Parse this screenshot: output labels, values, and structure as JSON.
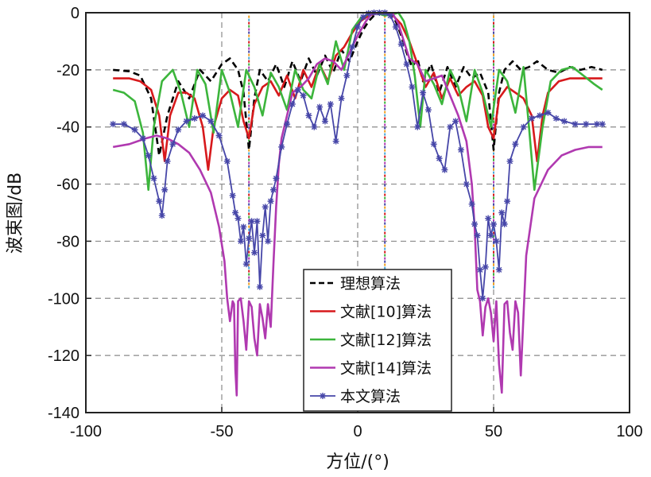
{
  "chart_data": {
    "type": "line",
    "xlabel": "方位/(°)",
    "ylabel": "波束图/dB",
    "xlim": [
      -100,
      100
    ],
    "ylim": [
      -140,
      0
    ],
    "xticks": [
      -100,
      -50,
      0,
      50,
      100
    ],
    "yticks": [
      0,
      -20,
      -40,
      -60,
      -80,
      -100,
      -120,
      -140
    ],
    "xtick_labels": [
      "-100",
      "-50",
      "0",
      "50",
      "100"
    ],
    "ytick_labels": [
      "0",
      "-20",
      "-40",
      "-60",
      "-80",
      "-100",
      "-120",
      "-140"
    ],
    "grid": true,
    "legend_position": "bottom-center",
    "main_beam_direction": 10,
    "interference_directions": [
      -40,
      50
    ],
    "series": [
      {
        "name": "理想算法",
        "color": "#000000",
        "style": "dashed",
        "x": [
          -90,
          -84,
          -80,
          -76,
          -73,
          -70,
          -66,
          -62,
          -58,
          -54,
          -50,
          -47,
          -44,
          -42,
          -40,
          -38,
          -36,
          -33,
          -30,
          -27,
          -24,
          -21,
          -18,
          -15,
          -12,
          -9,
          -6,
          -3,
          0,
          2,
          4,
          6,
          8,
          10,
          12,
          14,
          16,
          18,
          20,
          22,
          24,
          27,
          30,
          33,
          36,
          39,
          42,
          45,
          48,
          50,
          52,
          54,
          57,
          60,
          63,
          66,
          70,
          74,
          78,
          82,
          86,
          90
        ],
        "values": [
          -20,
          -20.5,
          -22,
          -30,
          -50,
          -36,
          -24,
          -30,
          -20,
          -24,
          -18,
          -16,
          -20,
          -28,
          -48,
          -30,
          -20,
          -24,
          -18,
          -26,
          -17,
          -24,
          -16,
          -22,
          -15,
          -21,
          -13,
          -17,
          -10,
          -6,
          -3,
          -1,
          -0.3,
          0,
          -0.5,
          -3,
          -8,
          -14,
          -19,
          -16,
          -24,
          -18,
          -28,
          -19,
          -26,
          -19,
          -23,
          -21,
          -28,
          -48,
          -28,
          -20,
          -17,
          -20,
          -19,
          -17,
          -20,
          -21,
          -19,
          -20,
          -19,
          -20
        ]
      },
      {
        "name": "文献[10]算法",
        "color": "#d7191c",
        "style": "solid",
        "x": [
          -90,
          -84,
          -80,
          -76,
          -73,
          -71,
          -69,
          -66,
          -63,
          -60,
          -57,
          -55,
          -53,
          -50,
          -47,
          -44,
          -42,
          -40,
          -38,
          -35,
          -32,
          -29,
          -26,
          -23,
          -20,
          -17,
          -14,
          -11,
          -8,
          -5,
          -2,
          1,
          4,
          7,
          10,
          13,
          16,
          19,
          22,
          25,
          28,
          31,
          34,
          37,
          40,
          43,
          46,
          48,
          50,
          52,
          55,
          58,
          61,
          64,
          66,
          68,
          70,
          74,
          78,
          82,
          86,
          90
        ],
        "values": [
          -23,
          -23,
          -24,
          -27,
          -36,
          -52,
          -36,
          -28,
          -28,
          -30,
          -40,
          -55,
          -40,
          -30,
          -27,
          -29,
          -38,
          -44,
          -32,
          -26,
          -24,
          -29,
          -22,
          -30,
          -20,
          -26,
          -18,
          -24,
          -15,
          -12,
          -7,
          -3,
          -1,
          -0.2,
          0,
          -1,
          -4,
          -10,
          -18,
          -26,
          -21,
          -30,
          -23,
          -29,
          -26,
          -24,
          -29,
          -40,
          -44,
          -30,
          -26,
          -28,
          -30,
          -36,
          -52,
          -36,
          -28,
          -24,
          -23,
          -23,
          -23,
          -23
        ]
      },
      {
        "name": "文献[12]算法",
        "color": "#3cb53c",
        "style": "solid",
        "x": [
          -90,
          -86,
          -82,
          -79,
          -77,
          -75,
          -72,
          -68,
          -65,
          -62,
          -59,
          -56,
          -53,
          -50,
          -47,
          -44,
          -41,
          -38,
          -35,
          -32,
          -29,
          -26,
          -23,
          -20,
          -17,
          -14,
          -11,
          -8,
          -5,
          -2,
          1,
          4,
          7,
          10,
          13,
          15,
          17,
          19,
          21,
          23,
          25,
          28,
          31,
          34,
          37,
          40,
          43,
          46,
          49,
          52,
          55,
          58,
          61,
          63,
          65,
          68,
          71,
          75,
          79,
          83,
          87,
          90
        ],
        "values": [
          -27,
          -28,
          -31,
          -42,
          -62,
          -40,
          -24,
          -20,
          -28,
          -40,
          -20,
          -25,
          -42,
          -20,
          -28,
          -40,
          -20,
          -26,
          -36,
          -21,
          -26,
          -34,
          -20,
          -27,
          -30,
          -18,
          -25,
          -10,
          -20,
          -6,
          -2,
          -0.5,
          -0.1,
          -1,
          -0.5,
          0,
          -3,
          -10,
          -22,
          -40,
          -20,
          -25,
          -32,
          -20,
          -26,
          -38,
          -20,
          -28,
          -40,
          -20,
          -24,
          -35,
          -19,
          -40,
          -62,
          -40,
          -24,
          -20,
          -19,
          -22,
          -25,
          -27
        ]
      },
      {
        "name": "文献[14]算法",
        "color": "#b039b0",
        "style": "solid",
        "x": [
          -90,
          -84,
          -78,
          -74,
          -70,
          -66,
          -62,
          -58,
          -54,
          -51,
          -49,
          -48,
          -47,
          -46,
          -45.5,
          -45,
          -44.5,
          -44,
          -43,
          -42,
          -41,
          -40,
          -39,
          -38,
          -37,
          -36,
          -35,
          -34,
          -33,
          -32,
          -31,
          -30,
          -29,
          -28,
          -26,
          -24,
          -21,
          -18,
          -15,
          -12,
          -9,
          -6,
          -3,
          0,
          3,
          5,
          7,
          9,
          10,
          11,
          13,
          15,
          17,
          19,
          22,
          25,
          28,
          31,
          34,
          37,
          40,
          42,
          43,
          44,
          45,
          46,
          47,
          48,
          49,
          50,
          51,
          52,
          53,
          54,
          55,
          56,
          57,
          58,
          59,
          60,
          62,
          65,
          70,
          75,
          80,
          85,
          90
        ],
        "values": [
          -47,
          -46,
          -44,
          -43,
          -44,
          -46,
          -49,
          -55,
          -63,
          -75,
          -87,
          -100,
          -108,
          -101,
          -102,
          -125,
          -134,
          -101,
          -100,
          -108,
          -118,
          -101,
          -103,
          -114,
          -120,
          -102,
          -107,
          -114,
          -102,
          -110,
          -88,
          -68,
          -53,
          -44,
          -36,
          -28,
          -26,
          -23,
          -18,
          -16,
          -17,
          -20,
          -14,
          -8,
          -3,
          -0.5,
          -0.1,
          0,
          0,
          0,
          -0.5,
          -4,
          -10,
          -16,
          -18,
          -24,
          -23,
          -22,
          -29,
          -36,
          -45,
          -60,
          -75,
          -97,
          -101,
          -113,
          -103,
          -100,
          -105,
          -115,
          -101,
          -123,
          -133,
          -102,
          -101,
          -112,
          -118,
          -101,
          -105,
          -127,
          -85,
          -65,
          -55,
          -50,
          -48,
          -47,
          -47
        ]
      },
      {
        "name": "本文算法",
        "color": "#4646a8",
        "style": "solid-star",
        "x": [
          -90,
          -86,
          -82,
          -79,
          -77,
          -75,
          -73,
          -72,
          -71,
          -70,
          -68,
          -66,
          -63,
          -60,
          -57,
          -54,
          -51,
          -48,
          -46,
          -45,
          -44,
          -43,
          -42,
          -41,
          -40,
          -39,
          -38,
          -37,
          -36,
          -35,
          -34,
          -33,
          -32,
          -31,
          -30,
          -28,
          -26,
          -24,
          -22,
          -20,
          -18,
          -16,
          -14,
          -12,
          -10,
          -8,
          -6,
          -4,
          -2,
          0,
          2,
          4,
          6,
          8,
          10,
          12,
          14,
          16,
          18,
          20,
          22,
          24,
          26,
          28,
          30,
          32,
          34,
          36,
          38,
          40,
          42,
          43,
          44,
          45,
          46,
          47,
          48,
          49,
          50,
          51,
          52,
          53,
          54,
          55,
          56,
          58,
          61,
          64,
          67,
          70,
          73,
          76,
          80,
          84,
          88,
          90
        ],
        "values": [
          -39,
          -39,
          -41,
          -44,
          -50,
          -58,
          -66,
          -71,
          -62,
          -52,
          -46,
          -41,
          -38,
          -37,
          -36,
          -38,
          -43,
          -52,
          -64,
          -70,
          -72,
          -80,
          -75,
          -88,
          -79,
          -73,
          -84,
          -73,
          -96,
          -78,
          -68,
          -80,
          -66,
          -62,
          -58,
          -47,
          -39,
          -32,
          -27,
          -29,
          -36,
          -40,
          -33,
          -38,
          -32,
          -45,
          -30,
          -22,
          -12,
          -5,
          -1.5,
          -0.2,
          0,
          0,
          0,
          -1,
          -5,
          -11,
          -18,
          -26,
          -40,
          -28,
          -34,
          -46,
          -51,
          -55,
          -40,
          -38,
          -48,
          -60,
          -67,
          -74,
          -78,
          -90,
          -100,
          -89,
          -72,
          -78,
          -74,
          -80,
          -90,
          -70,
          -74,
          -66,
          -52,
          -46,
          -40,
          -37,
          -36,
          -35,
          -37,
          -38,
          -39,
          -39,
          -39,
          -39
        ]
      }
    ]
  }
}
